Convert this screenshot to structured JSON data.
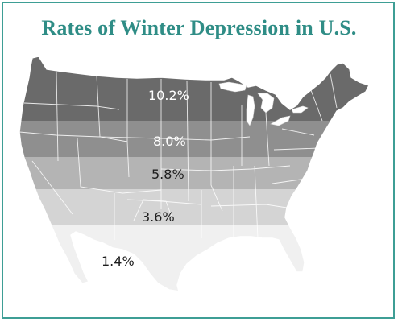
{
  "title": "Rates of Winter Depression in U.S.",
  "bands": [
    {
      "label": "10.2%",
      "rate": 10.2,
      "color": "#6a6a6a",
      "text_color": "#ffffff"
    },
    {
      "label": "8.0%",
      "rate": 8.0,
      "color": "#8f8f8f",
      "text_color": "#ffffff"
    },
    {
      "label": "5.8%",
      "rate": 5.8,
      "color": "#b4b4b4",
      "text_color": "#1d1d1d"
    },
    {
      "label": "3.6%",
      "rate": 3.6,
      "color": "#d4d4d4",
      "text_color": "#1d1d1d"
    },
    {
      "label": "1.4%",
      "rate": 1.4,
      "color": "#f0f0f0",
      "text_color": "#1d1d1d"
    }
  ],
  "colors": {
    "border": "#3e9e95",
    "title": "#2f8d86",
    "lakes": "#ffffff",
    "state_lines": "#ffffff"
  }
}
